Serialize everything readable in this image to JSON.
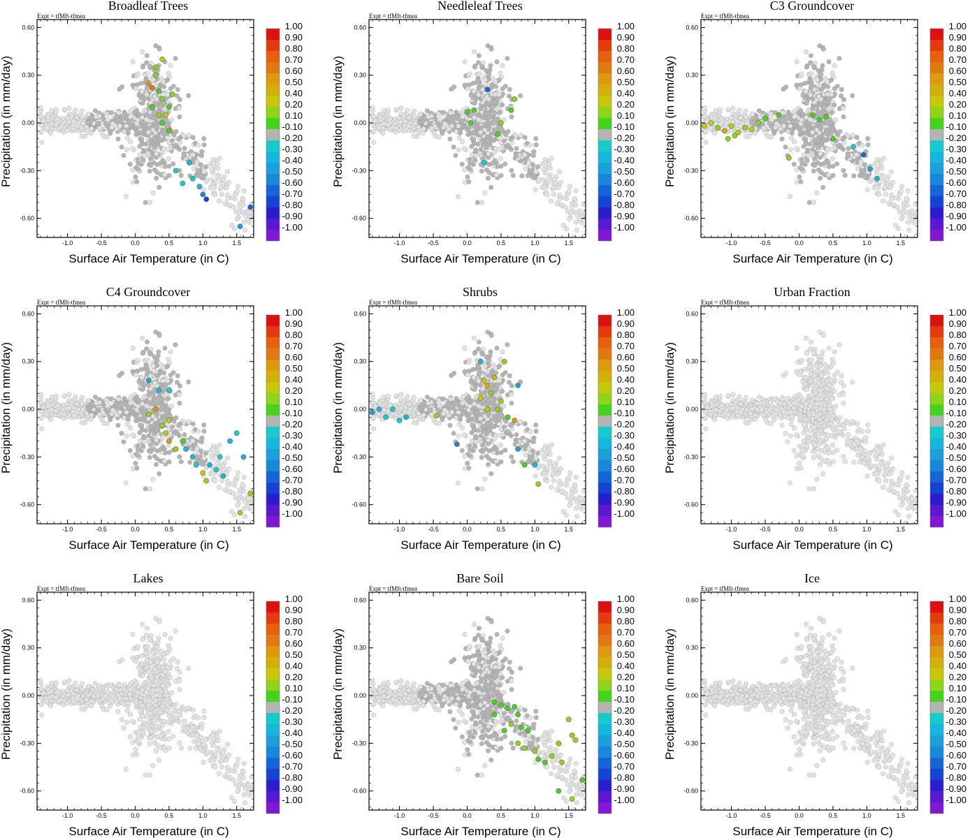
{
  "figure": {
    "expt_label": "Expt = tfMft-tfmea",
    "xlabel": "Surface Air Temperature (in C)",
    "ylabel": "Precipitation (in mm/day)"
  },
  "colorbar": {
    "labels": [
      "1.00",
      "0.90",
      "0.80",
      "0.70",
      "0.60",
      "0.50",
      "0.40",
      "0.20",
      "0.10",
      "-0.10",
      "-0.20",
      "-0.30",
      "-0.40",
      "-0.50",
      "-0.60",
      "-0.70",
      "-0.80",
      "-0.90",
      "-1.00"
    ],
    "colors": [
      "#dd1111",
      "#e53a0e",
      "#e8600c",
      "#e07a10",
      "#dc9a0c",
      "#d2b008",
      "#c8c808",
      "#90d418",
      "#44d41c",
      "#b4b4b4",
      "#14cccc",
      "#14b8dc",
      "#1ca0dc",
      "#1888dc",
      "#1466d8",
      "#1444d4",
      "#2c1cd0",
      "#5a18d0",
      "#8218d6"
    ]
  },
  "chart_data": [
    {
      "type": "scatter",
      "title": "Broadleaf Trees",
      "xlabel": "Surface Air Temperature (in C)",
      "ylabel": "Precipitation (in mm/day)",
      "xlim": [
        -1.45,
        1.75
      ],
      "ylim": [
        -0.72,
        0.65
      ],
      "xticks": [
        "-1.0",
        "-0.5",
        "0.0",
        "0.5",
        "1.0",
        "1.5"
      ],
      "yticks": [
        "0.60",
        "0.30",
        "0.00",
        "-0.30",
        "-0.60"
      ],
      "points": [
        [
          0.2,
          0.25,
          0.55
        ],
        [
          0.25,
          0.22,
          0.65
        ],
        [
          0.3,
          0.3,
          0.3
        ],
        [
          0.35,
          0.2,
          0.15
        ],
        [
          0.4,
          0.15,
          0.25
        ],
        [
          0.25,
          0.1,
          0.1
        ],
        [
          0.45,
          0.05,
          0.35
        ],
        [
          0.35,
          0.05,
          0.2
        ],
        [
          0.5,
          0.1,
          0.15
        ],
        [
          0.55,
          0.18,
          0.3
        ],
        [
          0.4,
          0.4,
          0.35
        ],
        [
          0.3,
          0.35,
          0.2
        ],
        [
          0.4,
          0.0,
          0.15
        ],
        [
          0.5,
          -0.05,
          0.1
        ],
        [
          0.8,
          -0.25,
          -0.3
        ],
        [
          0.85,
          -0.35,
          -0.25
        ],
        [
          0.7,
          -0.38,
          -0.2
        ],
        [
          0.95,
          -0.4,
          -0.3
        ],
        [
          1.0,
          -0.45,
          -0.5
        ],
        [
          1.05,
          -0.48,
          -0.7
        ],
        [
          1.55,
          -0.65,
          -0.4
        ],
        [
          1.7,
          -0.53,
          -0.6
        ],
        [
          0.6,
          -0.3,
          -0.2
        ]
      ]
    },
    {
      "type": "scatter",
      "title": "Needleleaf Trees",
      "xlabel": "Surface Air Temperature (in C)",
      "ylabel": "Precipitation (in mm/day)",
      "xlim": [
        -1.45,
        1.75
      ],
      "ylim": [
        -0.72,
        0.65
      ],
      "xticks": [
        "-1.0",
        "-0.5",
        "0.0",
        "0.5",
        "1.0",
        "1.5"
      ],
      "yticks": [
        "0.60",
        "0.30",
        "0.00",
        "-0.30",
        "-0.60"
      ],
      "points": [
        [
          0.3,
          0.21,
          -0.6
        ],
        [
          0.7,
          0.15,
          0.3
        ],
        [
          0.65,
          0.08,
          0.15
        ],
        [
          0.0,
          0.07,
          0.1
        ],
        [
          0.1,
          0.08,
          0.15
        ],
        [
          0.05,
          0.0,
          0.1
        ],
        [
          0.5,
          0.0,
          0.2
        ],
        [
          0.45,
          -0.07,
          0.1
        ],
        [
          0.25,
          -0.25,
          -0.2
        ]
      ]
    },
    {
      "type": "scatter",
      "title": "C3 Groundcover",
      "xlabel": "Surface Air Temperature (in C)",
      "ylabel": "Precipitation (in mm/day)",
      "xlim": [
        -1.45,
        1.75
      ],
      "ylim": [
        -0.72,
        0.65
      ],
      "xticks": [
        "-1.0",
        "-0.5",
        "0.0",
        "0.5",
        "1.0",
        "1.5"
      ],
      "yticks": [
        "0.60",
        "0.30",
        "0.00",
        "-0.30",
        "-0.60"
      ],
      "points": [
        [
          -1.4,
          -0.02,
          0.4
        ],
        [
          -1.3,
          0.0,
          0.35
        ],
        [
          -1.2,
          -0.03,
          0.3
        ],
        [
          -1.1,
          -0.05,
          0.45
        ],
        [
          -1.0,
          -0.02,
          0.35
        ],
        [
          -0.9,
          -0.06,
          0.4
        ],
        [
          -0.8,
          -0.03,
          0.3
        ],
        [
          -0.7,
          -0.04,
          0.35
        ],
        [
          -1.05,
          -0.1,
          0.3
        ],
        [
          -0.95,
          -0.08,
          0.25
        ],
        [
          -0.6,
          0.0,
          0.2
        ],
        [
          -0.5,
          0.03,
          0.1
        ],
        [
          -0.3,
          0.05,
          0.15
        ],
        [
          -0.15,
          -0.22,
          0.2
        ],
        [
          0.2,
          0.05,
          0.1
        ],
        [
          0.3,
          0.02,
          0.15
        ],
        [
          0.4,
          0.04,
          0.1
        ],
        [
          0.5,
          -0.1,
          0.15
        ],
        [
          0.8,
          -0.15,
          -0.2
        ],
        [
          0.95,
          -0.2,
          -0.6
        ],
        [
          1.05,
          -0.29,
          -0.4
        ],
        [
          1.15,
          -0.35,
          -0.3
        ]
      ]
    },
    {
      "type": "scatter",
      "title": "C4 Groundcover",
      "xlabel": "Surface Air Temperature (in C)",
      "ylabel": "Precipitation (in mm/day)",
      "xlim": [
        -1.45,
        1.75
      ],
      "ylim": [
        -0.72,
        0.65
      ],
      "xticks": [
        "-1.0",
        "-0.5",
        "0.0",
        "0.5",
        "1.0",
        "1.5"
      ],
      "yticks": [
        "0.60",
        "0.30",
        "0.00",
        "-0.30",
        "-0.60"
      ],
      "points": [
        [
          0.2,
          0.18,
          -0.4
        ],
        [
          0.35,
          0.12,
          -0.3
        ],
        [
          0.5,
          0.12,
          -0.2
        ],
        [
          0.3,
          0.0,
          0.6
        ],
        [
          0.2,
          -0.03,
          0.2
        ],
        [
          0.4,
          -0.1,
          0.3
        ],
        [
          0.5,
          -0.07,
          0.4
        ],
        [
          0.45,
          -0.15,
          0.35
        ],
        [
          0.5,
          -0.2,
          0.6
        ],
        [
          0.6,
          -0.25,
          0.3
        ],
        [
          0.7,
          -0.2,
          0.1
        ],
        [
          0.75,
          -0.25,
          -0.3
        ],
        [
          0.85,
          -0.3,
          -0.3
        ],
        [
          0.9,
          -0.35,
          -0.2
        ],
        [
          1.0,
          -0.4,
          0.35
        ],
        [
          1.05,
          -0.45,
          0.2
        ],
        [
          1.1,
          -0.35,
          -0.3
        ],
        [
          1.2,
          -0.38,
          -0.25
        ],
        [
          1.3,
          -0.42,
          -0.3
        ],
        [
          1.4,
          -0.2,
          -0.3
        ],
        [
          1.5,
          -0.15,
          -0.25
        ],
        [
          1.6,
          -0.3,
          -0.3
        ],
        [
          1.7,
          -0.53,
          0.2
        ],
        [
          1.55,
          -0.65,
          0.3
        ],
        [
          1.25,
          -0.3,
          -0.2
        ]
      ]
    },
    {
      "type": "scatter",
      "title": "Shrubs",
      "xlabel": "Surface Air Temperature (in C)",
      "ylabel": "Precipitation (in mm/day)",
      "xlim": [
        -1.45,
        1.75
      ],
      "ylim": [
        -0.72,
        0.65
      ],
      "xticks": [
        "-1.0",
        "-0.5",
        "0.0",
        "0.5",
        "1.0",
        "1.5"
      ],
      "yticks": [
        "0.60",
        "0.30",
        "0.00",
        "-0.30",
        "-0.60"
      ],
      "points": [
        [
          -1.4,
          -0.02,
          -0.4
        ],
        [
          -1.3,
          0.0,
          -0.3
        ],
        [
          -1.2,
          -0.05,
          -0.2
        ],
        [
          -1.1,
          0.0,
          -0.25
        ],
        [
          -1.0,
          -0.07,
          -0.2
        ],
        [
          -0.9,
          -0.05,
          -0.3
        ],
        [
          -0.45,
          -0.04,
          0.2
        ],
        [
          0.2,
          0.3,
          -0.3
        ],
        [
          0.25,
          0.18,
          0.4
        ],
        [
          0.3,
          0.15,
          0.5
        ],
        [
          0.4,
          0.2,
          0.45
        ],
        [
          0.35,
          0.1,
          0.3
        ],
        [
          0.2,
          0.07,
          0.4
        ],
        [
          0.3,
          0.0,
          0.35
        ],
        [
          0.45,
          0.0,
          0.2
        ],
        [
          0.5,
          0.05,
          0.3
        ],
        [
          0.6,
          -0.05,
          0.15
        ],
        [
          0.7,
          -0.07,
          0.6
        ],
        [
          0.75,
          0.15,
          -0.4
        ],
        [
          0.75,
          -0.25,
          -0.4
        ],
        [
          0.85,
          -0.35,
          0.15
        ],
        [
          1.0,
          -0.35,
          -0.3
        ],
        [
          1.05,
          -0.47,
          0.3
        ],
        [
          -0.15,
          -0.22,
          -0.5
        ],
        [
          0.55,
          0.3,
          0.3
        ]
      ]
    },
    {
      "type": "scatter",
      "title": "Urban Fraction",
      "xlabel": "Surface Air Temperature (in C)",
      "ylabel": "Precipitation (in mm/day)",
      "xlim": [
        -1.45,
        1.75
      ],
      "ylim": [
        -0.72,
        0.65
      ],
      "xticks": [
        "-1.0",
        "-0.5",
        "0.0",
        "0.5",
        "1.0",
        "1.5"
      ],
      "yticks": [
        "0.60",
        "0.30",
        "0.00",
        "-0.30",
        "-0.60"
      ],
      "points": []
    },
    {
      "type": "scatter",
      "title": "Lakes",
      "xlabel": "Surface Air Temperature (in C)",
      "ylabel": "Precipitation (in mm/day)",
      "xlim": [
        -1.45,
        1.75
      ],
      "ylim": [
        -0.72,
        0.65
      ],
      "xticks": [
        "-1.0",
        "-0.5",
        "0.0",
        "0.5",
        "1.0",
        "1.5"
      ],
      "yticks": [
        "0.60",
        "0.30",
        "0.00",
        "-0.30",
        "-0.60"
      ],
      "points": []
    },
    {
      "type": "scatter",
      "title": "Bare Soil",
      "xlabel": "Surface Air Temperature (in C)",
      "ylabel": "Precipitation (in mm/day)",
      "xlim": [
        -1.45,
        1.75
      ],
      "ylim": [
        -0.72,
        0.65
      ],
      "xticks": [
        "-1.0",
        "-0.5",
        "0.0",
        "0.5",
        "1.0",
        "1.5"
      ],
      "yticks": [
        "0.60",
        "0.30",
        "0.00",
        "-0.30",
        "-0.60"
      ],
      "points": [
        [
          0.4,
          -0.04,
          0.1
        ],
        [
          0.5,
          -0.06,
          0.1
        ],
        [
          0.6,
          -0.08,
          0.15
        ],
        [
          0.7,
          -0.07,
          0.1
        ],
        [
          0.75,
          -0.12,
          0.1
        ],
        [
          0.4,
          -0.12,
          0.1
        ],
        [
          0.65,
          -0.18,
          0.2
        ],
        [
          0.8,
          -0.2,
          0.1
        ],
        [
          0.9,
          -0.22,
          0.15
        ],
        [
          0.75,
          -0.3,
          0.2
        ],
        [
          0.85,
          -0.33,
          0.3
        ],
        [
          1.0,
          -0.35,
          0.2
        ],
        [
          1.05,
          -0.4,
          0.15
        ],
        [
          1.15,
          -0.42,
          0.1
        ],
        [
          1.25,
          -0.38,
          0.2
        ],
        [
          1.4,
          -0.42,
          0.2
        ],
        [
          1.55,
          -0.25,
          0.3
        ],
        [
          1.5,
          -0.15,
          0.3
        ],
        [
          1.6,
          -0.28,
          0.25
        ],
        [
          1.35,
          -0.3,
          0.2
        ],
        [
          1.7,
          -0.53,
          0.15
        ],
        [
          1.55,
          -0.65,
          0.2
        ],
        [
          1.35,
          -0.6,
          0.15
        ],
        [
          0.55,
          -0.22,
          0.15
        ]
      ]
    },
    {
      "type": "scatter",
      "title": "Ice",
      "xlabel": "Surface Air Temperature (in C)",
      "ylabel": "Precipitation (in mm/day)",
      "xlim": [
        -1.45,
        1.75
      ],
      "ylim": [
        -0.72,
        0.65
      ],
      "xticks": [
        "-1.0",
        "-0.5",
        "0.0",
        "0.5",
        "1.0",
        "1.5"
      ],
      "yticks": [
        "0.60",
        "0.30",
        "0.00",
        "-0.30",
        "-0.60"
      ],
      "points": []
    }
  ]
}
